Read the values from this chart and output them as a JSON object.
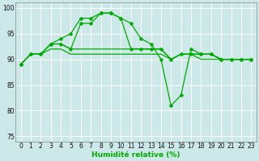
{
  "title": "",
  "xlabel": "Humidité relative (%)",
  "ylabel": "",
  "xlim": [
    -0.5,
    23.5
  ],
  "ylim": [
    74,
    101
  ],
  "yticks": [
    75,
    80,
    85,
    90,
    95,
    100
  ],
  "xticks": [
    0,
    1,
    2,
    3,
    4,
    5,
    6,
    7,
    8,
    9,
    10,
    11,
    12,
    13,
    14,
    15,
    16,
    17,
    18,
    19,
    20,
    21,
    22,
    23
  ],
  "bg_color": "#cce8e8",
  "grid_color": "#ffffff",
  "line_color": "#00aa00",
  "lines": [
    {
      "y": [
        89,
        91,
        91,
        93,
        93,
        92,
        97,
        97,
        99,
        99,
        98,
        92,
        92,
        92,
        92,
        90,
        91,
        91,
        91,
        91,
        90,
        90,
        90,
        90
      ],
      "marker": true
    },
    {
      "y": [
        89,
        91,
        91,
        93,
        94,
        95,
        98,
        98,
        99,
        99,
        98,
        97,
        94,
        93,
        90,
        81,
        83,
        92,
        91,
        91,
        90,
        90,
        90,
        90
      ],
      "marker": true
    },
    {
      "y": [
        89,
        91,
        91,
        92,
        92,
        91,
        91,
        91,
        91,
        91,
        91,
        91,
        91,
        91,
        91,
        90,
        91,
        91,
        90,
        90,
        90,
        90,
        90,
        90
      ],
      "marker": false
    },
    {
      "y": [
        89,
        91,
        91,
        93,
        93,
        92,
        92,
        92,
        92,
        92,
        92,
        92,
        92,
        92,
        92,
        90,
        91,
        91,
        91,
        91,
        90,
        90,
        90,
        90
      ],
      "marker": false
    }
  ],
  "markersize": 2.5,
  "linewidth": 0.9,
  "xlabel_fontsize": 6.5,
  "tick_fontsize": 5.5
}
